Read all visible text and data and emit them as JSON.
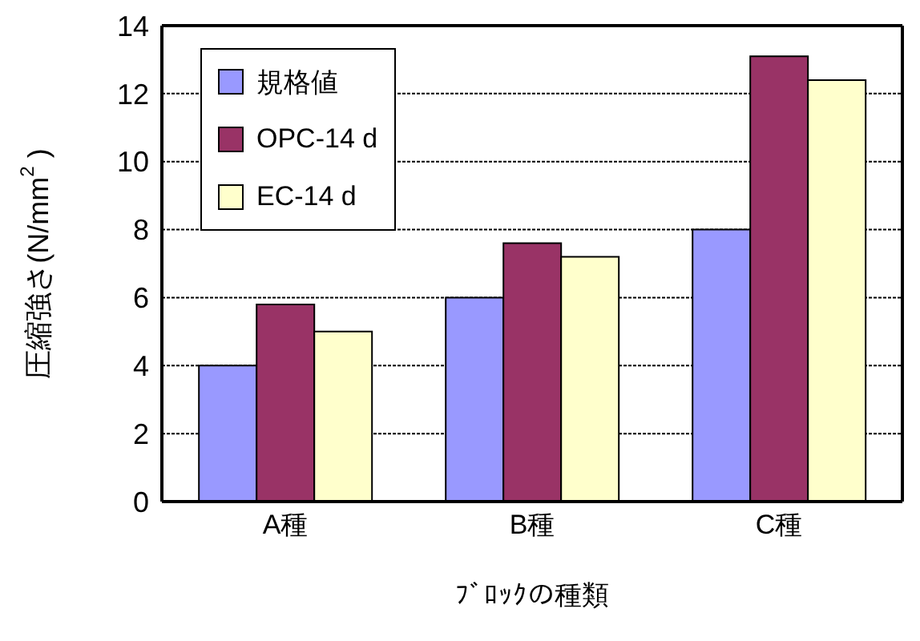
{
  "chart_data": {
    "type": "bar",
    "xlabel": "ﾌﾞﾛｯｸの種類",
    "ylabel": "圧縮強さ(N/mm$^{2}$ )",
    "categories": [
      "A種",
      "B種",
      "C種"
    ],
    "series": [
      {
        "name": "規格値",
        "color": "#9999ff",
        "values": [
          4,
          6,
          8
        ]
      },
      {
        "name": "OPC-14 d",
        "color": "#993366",
        "values": [
          5.8,
          7.6,
          13.1
        ]
      },
      {
        "name": "EC-14 d",
        "color": "#ffffcc",
        "values": [
          5.0,
          7.2,
          12.4
        ]
      }
    ],
    "ylim": [
      0,
      14
    ],
    "yticks": [
      0,
      2,
      4,
      6,
      8,
      10,
      12,
      14
    ],
    "grid": "y",
    "legend": "top left"
  }
}
